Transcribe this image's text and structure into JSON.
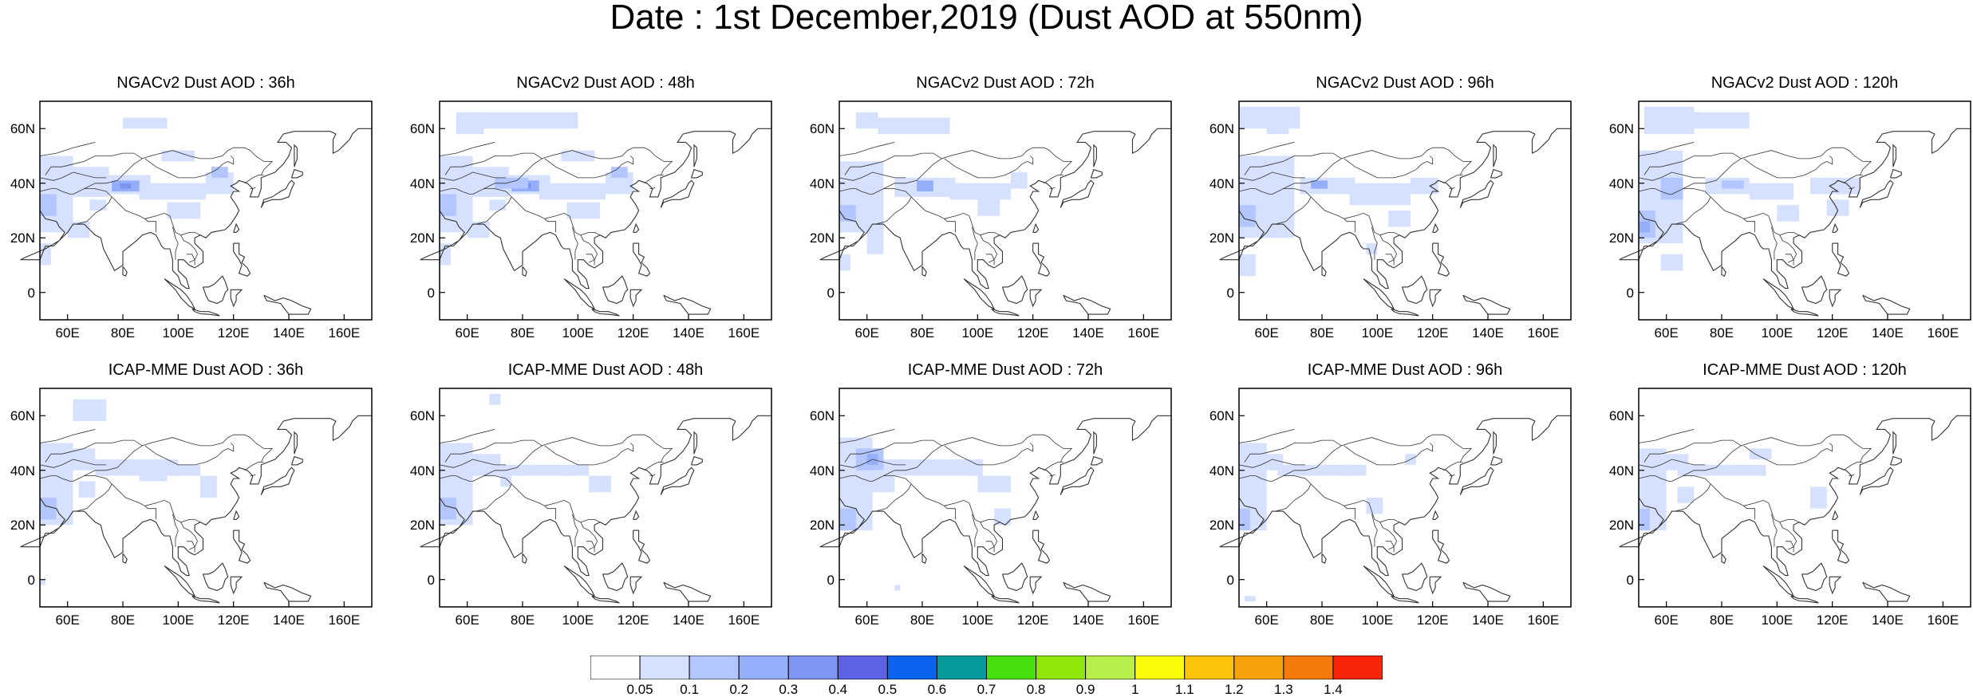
{
  "title": "Date : 1st December,2019 (Dust AOD at 550nm)",
  "panels": [
    {
      "title": "NGACv2 Dust AOD : 36h"
    },
    {
      "title": "NGACv2 Dust AOD : 48h"
    },
    {
      "title": "NGACv2 Dust AOD : 72h"
    },
    {
      "title": "NGACv2 Dust AOD : 96h"
    },
    {
      "title": "NGACv2 Dust AOD : 120h"
    },
    {
      "title": "ICAP-MME Dust AOD : 36h"
    },
    {
      "title": "ICAP-MME Dust AOD : 48h"
    },
    {
      "title": "ICAP-MME Dust AOD : 72h"
    },
    {
      "title": "ICAP-MME Dust AOD : 96h"
    },
    {
      "title": "ICAP-MME Dust AOD : 120h"
    }
  ],
  "lat_labels": [
    "60N",
    "40N",
    "20N",
    "0"
  ],
  "lat_values": [
    60,
    40,
    20,
    0
  ],
  "lon_labels": [
    "60E",
    "80E",
    "100E",
    "120E",
    "140E",
    "160E"
  ],
  "lon_values": [
    60,
    80,
    100,
    120,
    140,
    160
  ],
  "map_extent": {
    "lon": [
      50,
      170
    ],
    "lat": [
      -10,
      70
    ]
  },
  "colorbar": {
    "labels": [
      "0.05",
      "0.1",
      "0.2",
      "0.3",
      "0.4",
      "0.5",
      "0.6",
      "0.7",
      "0.8",
      "0.9",
      "1",
      "1.1",
      "1.2",
      "1.3",
      "1.4"
    ],
    "colors": [
      "#ffffff",
      "#d6e1ff",
      "#b3c6ff",
      "#95aef9",
      "#7f95f2",
      "#5e63e6",
      "#0a64ee",
      "#069a9a",
      "#46e010",
      "#8ee60a",
      "#b8ef4a",
      "#fbfb0a",
      "#f9c40a",
      "#f7a20a",
      "#f57a0a",
      "#f7240a"
    ]
  },
  "colors": {
    "coast": "#333333",
    "frame": "#000000"
  }
}
